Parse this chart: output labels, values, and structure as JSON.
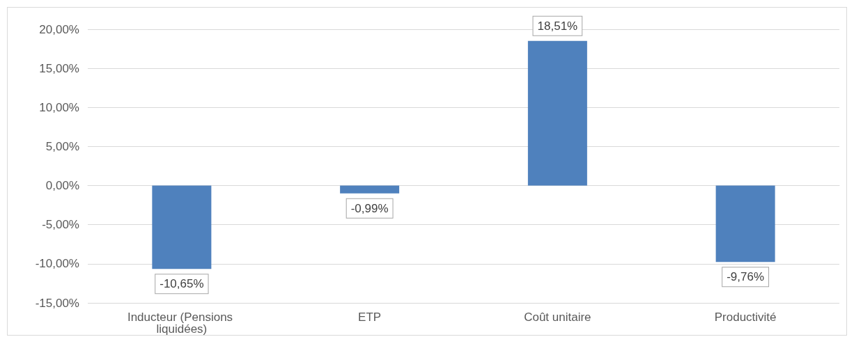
{
  "chart_data": {
    "type": "bar",
    "categories": [
      "Inducteur (Pensions liquidées)",
      "ETP",
      "Coût unitaire",
      "Productivité"
    ],
    "values": [
      -10.65,
      -0.99,
      18.51,
      -9.76
    ],
    "color": "#4f81bd",
    "value_labels": [
      "-10,65%",
      "-0,99%",
      "18,51%",
      "-9,76%"
    ],
    "ylim": [
      -15,
      20
    ],
    "yticks": [
      {
        "value": -15,
        "label": "-15,00%"
      },
      {
        "value": -10,
        "label": "-10,00%"
      },
      {
        "value": -5,
        "label": "-5,00%"
      },
      {
        "value": 0,
        "label": "0,00%"
      },
      {
        "value": 5,
        "label": "5,00%"
      },
      {
        "value": 10,
        "label": "10,00%"
      },
      {
        "value": 15,
        "label": "15,00%"
      },
      {
        "value": 20,
        "label": "20,00%"
      }
    ],
    "grid": "y"
  }
}
